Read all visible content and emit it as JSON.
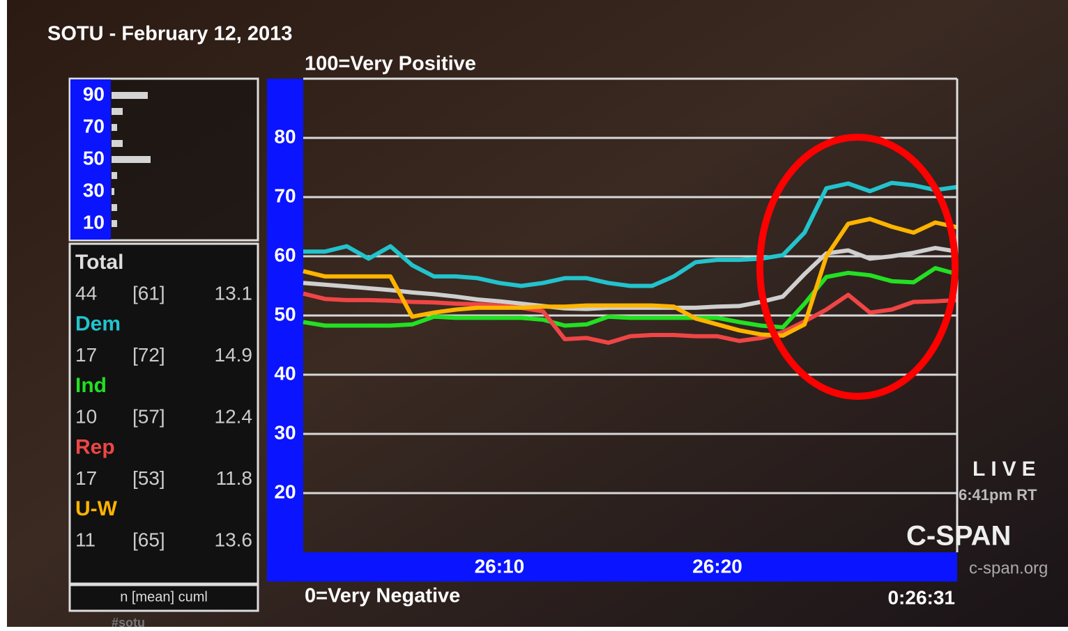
{
  "chart_data": [
    {
      "type": "bar",
      "orientation": "horizontal",
      "categories": [
        "90",
        null,
        "70",
        null,
        "50",
        null,
        "30",
        null,
        "10"
      ],
      "values": [
        13,
        4,
        2,
        4,
        14,
        2,
        1,
        2,
        2
      ],
      "color": "#d4d4d4"
    },
    {
      "type": "line",
      "title": "SOTU - February 12, 2013",
      "top_label": "100=Very Positive",
      "bottom_label": "0=Very Negative",
      "timecode": "0:26:31",
      "x": [
        1561,
        1562,
        1563,
        1564,
        1565,
        1566,
        1567,
        1568,
        1569,
        1570,
        1571,
        1572,
        1573,
        1574,
        1575,
        1576,
        1577,
        1578,
        1579,
        1580,
        1581,
        1582,
        1583,
        1584,
        1585,
        1586,
        1587,
        1588,
        1589,
        1590,
        1591
      ],
      "xlim": [
        1561,
        1591
      ],
      "xticks": [
        {
          "value": 1570,
          "label": "26:10"
        },
        {
          "value": 1580,
          "label": "26:20"
        }
      ],
      "ylim": [
        10,
        90
      ],
      "yticks": [
        20,
        30,
        40,
        50,
        60,
        70,
        80
      ],
      "grid": true,
      "series": [
        {
          "name": "Total",
          "color": "#cfcfcf",
          "stats": [
            "44",
            "[61]",
            "13.1"
          ],
          "values": [
            55.5,
            55.2,
            54.9,
            54.6,
            54.3,
            53.9,
            53.6,
            53.2,
            52.7,
            52.4,
            52.0,
            51.6,
            51.2,
            51.1,
            51.3,
            51.3,
            51.3,
            51.3,
            51.3,
            51.5,
            51.6,
            52.3,
            53.2,
            57.0,
            60.5,
            61.0,
            59.6,
            60.0,
            60.6,
            61.4,
            60.8
          ]
        },
        {
          "name": "Dem",
          "color": "#22c3cc",
          "stats": [
            "17",
            "[72]",
            "14.9"
          ],
          "values": [
            60.8,
            60.8,
            61.7,
            59.6,
            61.7,
            58.5,
            56.6,
            56.6,
            56.3,
            55.5,
            55.0,
            55.5,
            56.3,
            56.3,
            55.5,
            55.0,
            55.0,
            56.6,
            59.0,
            59.4,
            59.4,
            59.6,
            60.2,
            64.0,
            71.5,
            72.3,
            71.0,
            72.4,
            72.0,
            71.2,
            71.7
          ]
        },
        {
          "name": "Ind",
          "color": "#22e022",
          "stats": [
            "10",
            "[57]",
            "12.4"
          ],
          "values": [
            48.9,
            48.3,
            48.3,
            48.3,
            48.3,
            48.5,
            49.8,
            49.6,
            49.6,
            49.6,
            49.6,
            49.3,
            48.3,
            48.5,
            49.8,
            49.6,
            49.6,
            49.6,
            49.6,
            49.6,
            48.9,
            48.3,
            48.0,
            52.0,
            56.5,
            57.2,
            56.8,
            55.8,
            55.6,
            58.0,
            57.0
          ]
        },
        {
          "name": "Rep",
          "color": "#f04545",
          "stats": [
            "17",
            "[53]",
            "11.8"
          ],
          "values": [
            53.7,
            52.8,
            52.6,
            52.6,
            52.5,
            52.3,
            52.2,
            52.0,
            51.9,
            51.7,
            51.3,
            50.7,
            46.0,
            46.2,
            45.4,
            46.5,
            46.7,
            46.7,
            46.5,
            46.5,
            45.7,
            46.2,
            47.2,
            49.0,
            51.0,
            53.5,
            50.5,
            51.0,
            52.3,
            52.4,
            52.6
          ]
        },
        {
          "name": "U-W",
          "color": "#ffb400",
          "stats": [
            "11",
            "[65]",
            "13.6"
          ],
          "values": [
            57.5,
            56.6,
            56.6,
            56.6,
            56.6,
            49.8,
            50.5,
            51.0,
            51.3,
            51.3,
            51.3,
            51.5,
            51.5,
            51.7,
            51.7,
            51.7,
            51.7,
            51.5,
            49.5,
            48.5,
            47.5,
            46.8,
            46.6,
            48.5,
            60.0,
            65.5,
            66.3,
            65.0,
            64.0,
            65.7,
            64.9
          ]
        }
      ],
      "stats_header": "n [mean] cuml"
    }
  ],
  "broadcast": {
    "live": "LIVE",
    "time": "6:41pm RT",
    "network": "C-SPAN",
    "site": "c-span.org",
    "hashtag": "#sotu"
  }
}
